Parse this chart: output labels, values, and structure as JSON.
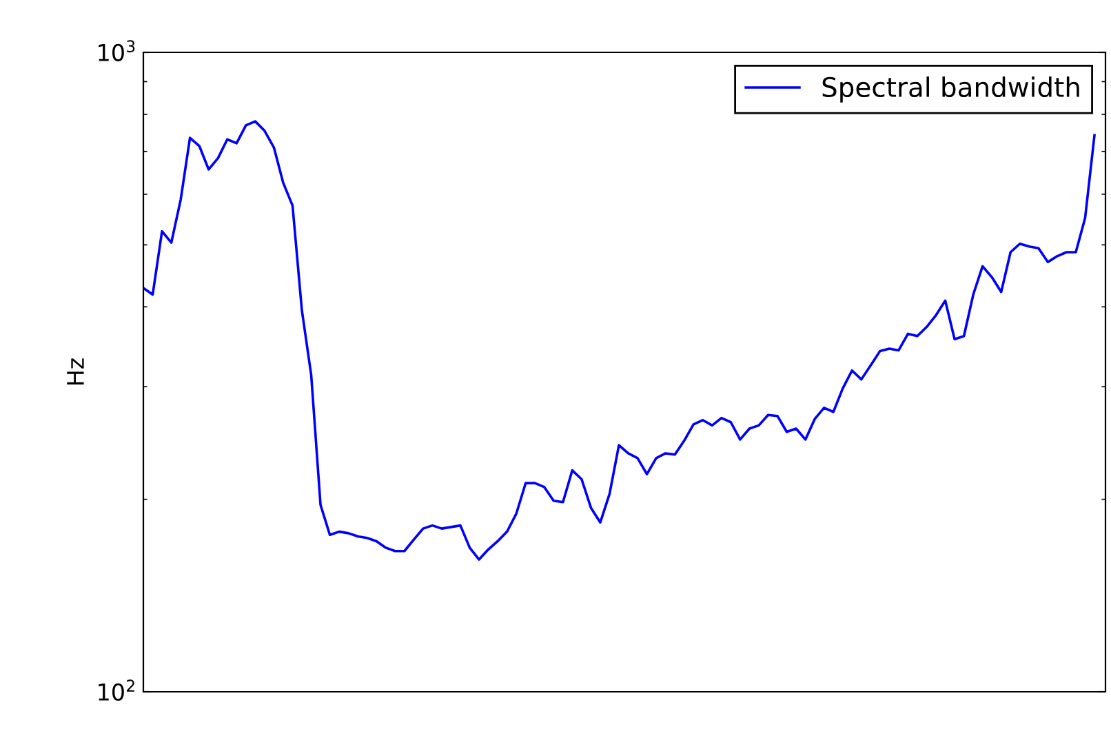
{
  "chart_data": {
    "type": "line",
    "ylabel": "Hz",
    "log": "y",
    "ylim": [
      100,
      1000
    ],
    "yticks": [
      {
        "value": 100,
        "label": "10$^{2}$"
      },
      {
        "value": 1000,
        "label": "10$^{3}$"
      }
    ],
    "tick_labels": "y",
    "legend": "top right",
    "line_style": "solid",
    "categories": [
      null,
      null,
      null,
      null,
      null,
      null,
      null,
      null,
      null,
      null,
      null,
      null,
      null,
      null,
      null,
      null,
      null,
      null,
      null,
      null,
      null,
      null,
      null,
      null,
      null,
      null,
      null,
      null,
      null,
      null,
      null,
      null,
      null,
      null,
      null,
      null,
      null,
      null,
      null,
      null,
      null,
      null,
      null,
      null,
      null,
      null,
      null,
      null,
      null,
      null,
      null,
      null,
      null,
      null,
      null,
      null,
      null,
      null,
      null,
      null,
      null,
      null,
      null,
      null,
      null,
      null,
      null,
      null,
      null,
      null,
      null,
      null,
      null,
      null,
      null,
      null,
      null,
      null,
      null,
      null,
      null,
      null,
      null,
      null,
      null,
      null,
      null,
      null,
      null,
      null,
      null,
      null,
      null,
      null,
      null,
      null,
      null,
      null,
      null,
      null,
      null,
      null,
      null
    ],
    "series": [
      {
        "name": "Spectral bandwidth",
        "color": "#0000ff",
        "values": [
          428,
          418,
          525,
          504,
          588,
          735,
          714,
          656,
          683,
          731,
          721,
          769,
          780,
          754,
          710,
          625,
          576,
          395,
          313,
          196,
          176,
          178,
          177,
          175,
          174,
          172,
          168,
          166,
          166,
          173,
          180,
          182,
          180,
          181,
          182,
          168,
          161,
          167,
          172,
          178,
          190,
          212,
          212,
          209,
          199,
          198,
          222,
          215,
          194,
          184,
          204,
          243,
          236,
          232,
          219,
          232,
          236,
          235,
          247,
          262,
          266,
          261,
          268,
          264,
          248,
          258,
          261,
          271,
          270,
          255,
          258,
          248,
          267,
          278,
          274,
          298,
          318,
          308,
          324,
          341,
          344,
          342,
          363,
          360,
          372,
          388,
          409,
          356,
          360,
          418,
          463,
          445,
          422,
          487,
          502,
          497,
          494,
          470,
          480,
          487,
          487,
          551,
          742
        ]
      }
    ]
  }
}
